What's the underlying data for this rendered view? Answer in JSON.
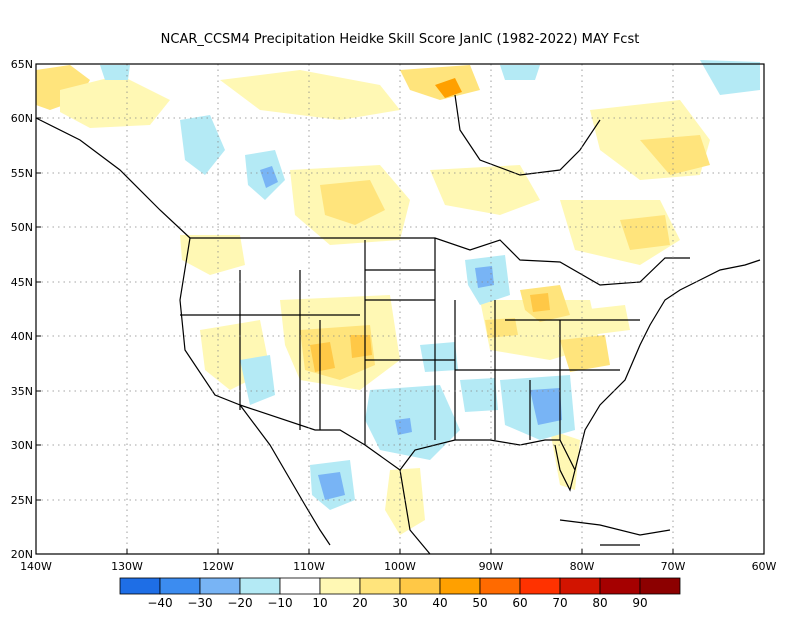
{
  "title": "NCAR_CCSM4  Precipitation Heidke Skill Score JanIC (1982-2022) MAY Fcst",
  "lat_labels": [
    "65N",
    "60N",
    "55N",
    "50N",
    "45N",
    "40N",
    "35N",
    "30N",
    "25N",
    "20N"
  ],
  "lon_labels": [
    "140W",
    "130W",
    "120W",
    "110W",
    "100W",
    "90W",
    "80W",
    "70W",
    "60W"
  ],
  "colorbar": {
    "labels": [
      "−40",
      "−30",
      "−20",
      "−10",
      "10",
      "20",
      "30",
      "40",
      "50",
      "60",
      "70",
      "80",
      "90"
    ],
    "colors": [
      "#1e6ee6",
      "#3c8cf0",
      "#78b4f5",
      "#b4eaf5",
      "#ffffff",
      "#fff8b4",
      "#ffe47c",
      "#ffc846",
      "#ffa000",
      "#ff6a00",
      "#ff3200",
      "#d21400",
      "#a50000",
      "#8c0000"
    ]
  },
  "legend_colors": {
    "negative_strong": "#1e6ee6",
    "negative_weak": "#b4eaf5",
    "positive_weak": "#fff8b4",
    "positive_mid": "#ffe47c",
    "positive_strong": "#ffc846",
    "positive_peak": "#ffa000"
  }
}
